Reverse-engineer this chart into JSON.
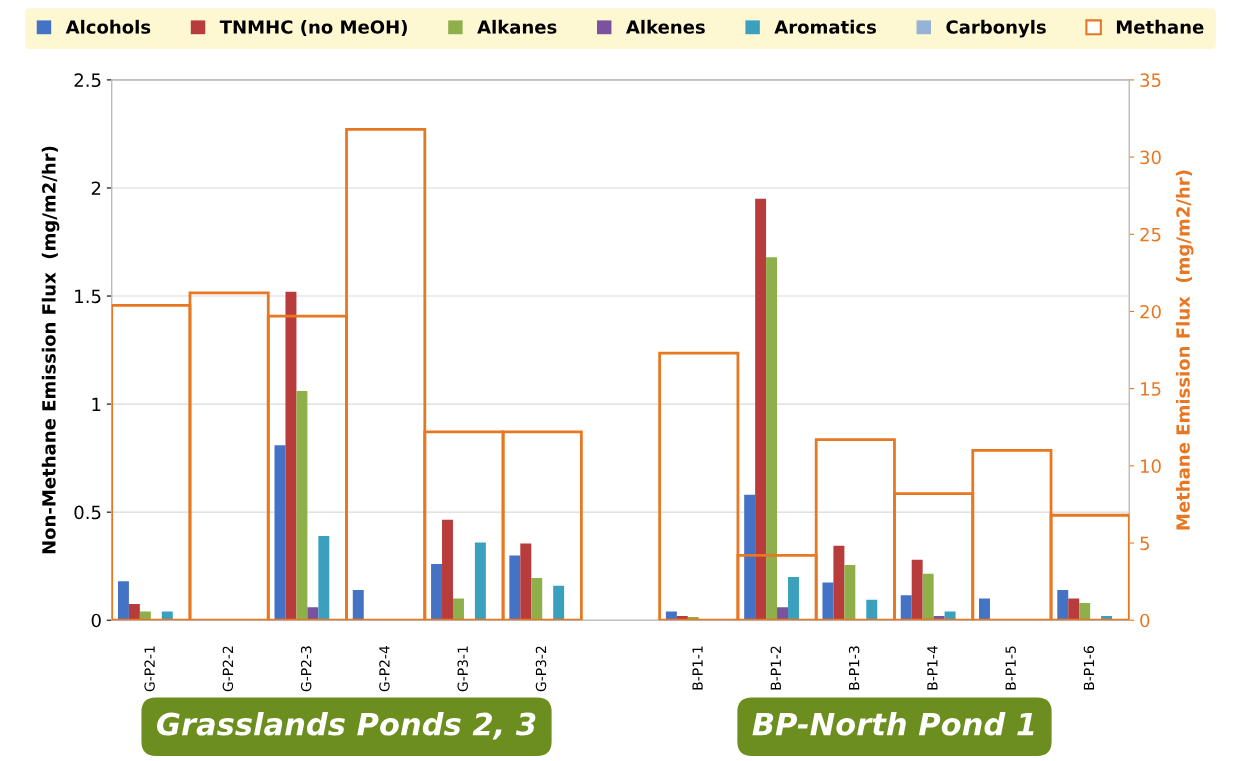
{
  "chart_data": {
    "type": "bar",
    "categories": [
      "G-P2-1",
      "G-P2-2",
      "G-P2-3",
      "G-P2-4",
      "G-P3-1",
      "G-P3-2",
      null,
      "B-P1-1",
      "B-P1-2",
      "B-P1-3",
      "B-P1-4",
      "B-P1-5",
      "B-P1-6"
    ],
    "ylabel": "Non-Methane Emission Flux  (mg/m2/hr)",
    "y2label": "Methane Emission Flux  (mg/m2/hr)",
    "ylim": [
      0,
      2.5
    ],
    "yticks": [
      0,
      0.5,
      1,
      1.5,
      2,
      2.5
    ],
    "y2lim": [
      0,
      35
    ],
    "y2ticks": [
      0,
      5,
      10,
      15,
      20,
      25,
      30,
      35
    ],
    "grid": "y",
    "legend": "top",
    "annotations": [
      "Grasslands Ponds 2, 3",
      "BP-North Pond 1"
    ],
    "series": [
      {
        "name": "Alcohols",
        "color": "#4472c4",
        "values": [
          0.18,
          0,
          0.81,
          0.14,
          0.26,
          0.3,
          null,
          0.04,
          0.58,
          0.175,
          0.115,
          0.1,
          0.14
        ]
      },
      {
        "name": "TNMHC (no MeOH)",
        "color": "#b83c3c",
        "values": [
          0.075,
          0,
          1.52,
          0,
          0.465,
          0.355,
          null,
          0.02,
          1.95,
          0.345,
          0.28,
          0,
          0.1
        ]
      },
      {
        "name": "Alkanes",
        "color": "#8faf4a",
        "values": [
          0.04,
          0,
          1.06,
          0,
          0.1,
          0.195,
          null,
          0.015,
          1.68,
          0.255,
          0.215,
          0,
          0.08
        ]
      },
      {
        "name": "Alkenes",
        "color": "#7a52a0",
        "values": [
          0,
          0,
          0.06,
          0,
          0,
          0,
          null,
          0,
          0.06,
          0,
          0.02,
          0,
          0
        ]
      },
      {
        "name": "Aromatics",
        "color": "#3aa0bd",
        "values": [
          0.04,
          0,
          0.39,
          0,
          0.36,
          0.16,
          null,
          0,
          0.2,
          0.095,
          0.04,
          0,
          0.02
        ]
      },
      {
        "name": "Carbonyls",
        "color": "#95b3d7",
        "values": [
          0,
          0,
          0,
          0,
          0,
          0,
          null,
          0,
          0,
          0,
          0,
          0,
          0
        ]
      },
      {
        "name": "Methane",
        "color": "#e87722",
        "axis": "y2",
        "values": [
          20.4,
          21.2,
          19.7,
          31.8,
          12.2,
          12.2,
          null,
          17.3,
          4.2,
          11.7,
          8.2,
          11.0,
          6.8
        ]
      }
    ]
  }
}
